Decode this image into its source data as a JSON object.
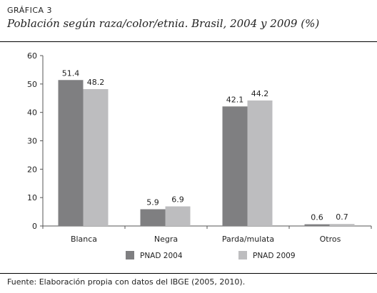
{
  "header": {
    "label": "GRÁFICA 3",
    "title": "Población según raza/color/etnia. Brasil, 2004 y 2009 (%)"
  },
  "footer": {
    "source_label": "Fuente:",
    "source_text": " Elaboración propia con datos del IBGE (2005, 2010)."
  },
  "chart_data": {
    "type": "bar",
    "categories": [
      "Blanca",
      "Negra",
      "Parda/mulata",
      "Otros"
    ],
    "series": [
      {
        "name": "PNAD 2004",
        "values": [
          51.4,
          5.9,
          42.1,
          0.6
        ],
        "color": "#7f7f81"
      },
      {
        "name": "PNAD 2009",
        "values": [
          48.2,
          6.9,
          44.2,
          0.7
        ],
        "color": "#bdbdbf"
      }
    ],
    "ylim": [
      0,
      60
    ],
    "yticks": [
      0,
      10,
      20,
      30,
      40,
      50,
      60
    ],
    "grid": false,
    "legend": "bottom",
    "data_labels": [
      "51.4",
      "48.2",
      "5.9",
      "6.9",
      "42.1",
      "44.2",
      "0.6",
      "0.7"
    ]
  }
}
